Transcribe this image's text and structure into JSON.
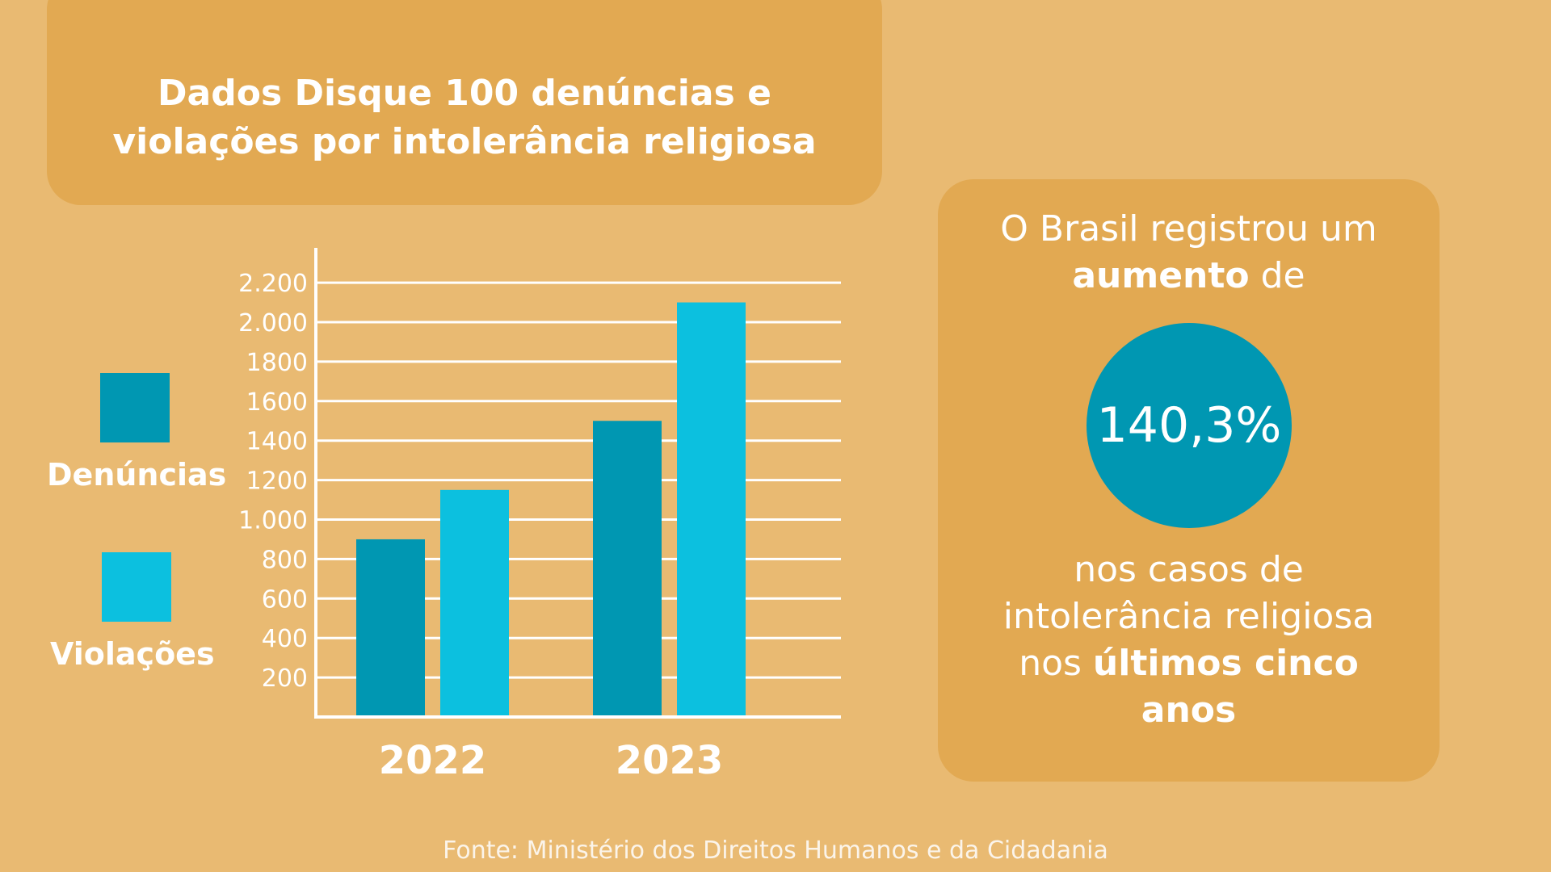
{
  "title": {
    "line1": "Dados Disque 100 denúncias e",
    "line2": "violações por intolerância religiosa"
  },
  "legend": {
    "denuncias": {
      "label": "Denúncias",
      "color": "#0097B2"
    },
    "violacoes": {
      "label": "Violações",
      "color": "#0CC0DF"
    }
  },
  "chart_data": {
    "type": "bar",
    "categories": [
      "2022",
      "2023"
    ],
    "series": [
      {
        "name": "Denúncias",
        "color": "#0097B2",
        "values": [
          900,
          1500
        ]
      },
      {
        "name": "Violações",
        "color": "#0CC0DF",
        "values": [
          1150,
          2100
        ]
      }
    ],
    "yticks": [
      {
        "value": 200,
        "label": "200"
      },
      {
        "value": 400,
        "label": "400"
      },
      {
        "value": 600,
        "label": "600"
      },
      {
        "value": 800,
        "label": "800"
      },
      {
        "value": 1000,
        "label": "1.000"
      },
      {
        "value": 1200,
        "label": "1200"
      },
      {
        "value": 1400,
        "label": "1400"
      },
      {
        "value": 1600,
        "label": "1600"
      },
      {
        "value": 1800,
        "label": "1800"
      },
      {
        "value": 2000,
        "label": "2.000"
      },
      {
        "value": 2200,
        "label": "2.200"
      }
    ],
    "ylim": [
      0,
      2200
    ],
    "grid": true,
    "legend_position": "left"
  },
  "highlight": {
    "line1": "O Brasil registrou um",
    "line2_bold": "aumento",
    "line2_rest": " de",
    "value": "140,3%",
    "line3": "nos casos de",
    "line4": "intolerância religiosa",
    "line5_pre": "nos ",
    "line5_bold": "últimos cinco",
    "line6_bold": "anos"
  },
  "source": "Fonte: Ministério dos Direitos Humanos e da Cidadania"
}
